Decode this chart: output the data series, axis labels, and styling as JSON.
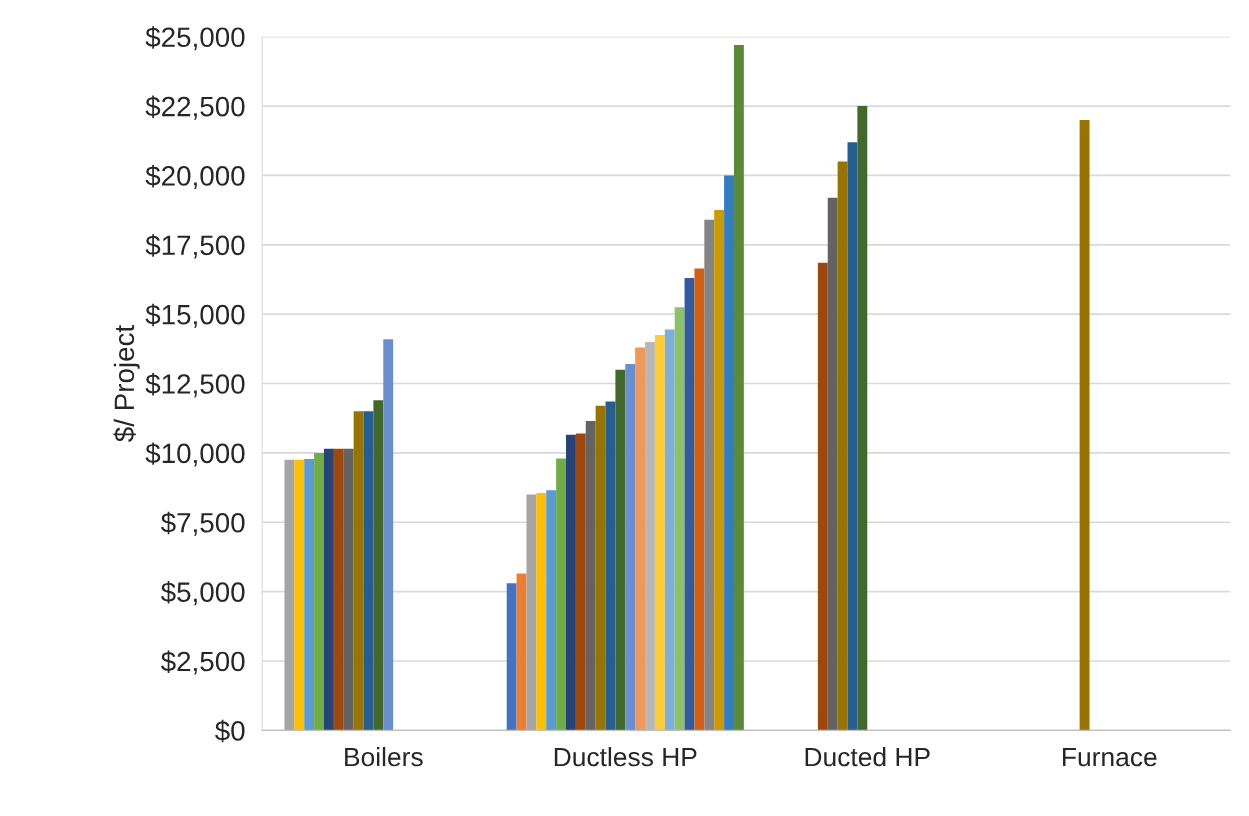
{
  "chart_data": {
    "type": "bar",
    "ylabel": "$/ Project",
    "categories": [
      "Boilers",
      "Ductless HP",
      "Ducted HP",
      "Furnace"
    ],
    "ylim": [
      0,
      25000
    ],
    "yticks": [
      {
        "value": 0,
        "label": "$0"
      },
      {
        "value": 2500,
        "label": "$2,500"
      },
      {
        "value": 5000,
        "label": "$5,000"
      },
      {
        "value": 7500,
        "label": "$7,500"
      },
      {
        "value": 10000,
        "label": "$10,000"
      },
      {
        "value": 12500,
        "label": "$12,500"
      },
      {
        "value": 15000,
        "label": "$15,000"
      },
      {
        "value": 17500,
        "label": "$17,500"
      },
      {
        "value": 20000,
        "label": "$20,000"
      },
      {
        "value": 22500,
        "label": "$22,500"
      },
      {
        "value": 25000,
        "label": "$25,000"
      }
    ],
    "grid": "y",
    "legend": false,
    "series": [
      {
        "color": "#4472c4",
        "values": [
          null,
          5300,
          null,
          null
        ]
      },
      {
        "color": "#ed7d31",
        "values": [
          null,
          5650,
          null,
          null
        ]
      },
      {
        "color": "#a5a5a5",
        "values": [
          9750,
          8500,
          null,
          null
        ]
      },
      {
        "color": "#ffc000",
        "values": [
          9750,
          8550,
          null,
          null
        ]
      },
      {
        "color": "#5b9bd5",
        "values": [
          9780,
          8650,
          null,
          null
        ]
      },
      {
        "color": "#70ad47",
        "values": [
          10000,
          9800,
          null,
          null
        ]
      },
      {
        "color": "#264478",
        "values": [
          10150,
          10650,
          null,
          null
        ]
      },
      {
        "color": "#9e480e",
        "values": [
          10150,
          10700,
          16850,
          null
        ]
      },
      {
        "color": "#636363",
        "values": [
          10150,
          11150,
          19200,
          null
        ]
      },
      {
        "color": "#997300",
        "values": [
          11500,
          11700,
          20500,
          22000
        ]
      },
      {
        "color": "#255e91",
        "values": [
          11500,
          11850,
          21200,
          null
        ]
      },
      {
        "color": "#43682b",
        "values": [
          11900,
          13000,
          22500,
          null
        ]
      },
      {
        "color": "#698ed0",
        "values": [
          14100,
          13200,
          null,
          null
        ]
      },
      {
        "color": "#f1975a",
        "values": [
          null,
          13800,
          null,
          null
        ]
      },
      {
        "color": "#b7b7b7",
        "values": [
          null,
          14000,
          null,
          null
        ]
      },
      {
        "color": "#ffcd33",
        "values": [
          null,
          14250,
          null,
          null
        ]
      },
      {
        "color": "#7cafdd",
        "values": [
          null,
          14450,
          null,
          null
        ]
      },
      {
        "color": "#8cc168",
        "values": [
          null,
          15250,
          null,
          null
        ]
      },
      {
        "color": "#335aa1",
        "values": [
          null,
          16300,
          null,
          null
        ]
      },
      {
        "color": "#d26012",
        "values": [
          null,
          16650,
          null,
          null
        ]
      },
      {
        "color": "#848484",
        "values": [
          null,
          18400,
          null,
          null
        ]
      },
      {
        "color": "#cc9a00",
        "values": [
          null,
          18750,
          null,
          null
        ]
      },
      {
        "color": "#327dc2",
        "values": [
          null,
          20000,
          null,
          null
        ]
      },
      {
        "color": "#5a8a39",
        "values": [
          null,
          24700,
          null,
          null
        ]
      }
    ]
  }
}
